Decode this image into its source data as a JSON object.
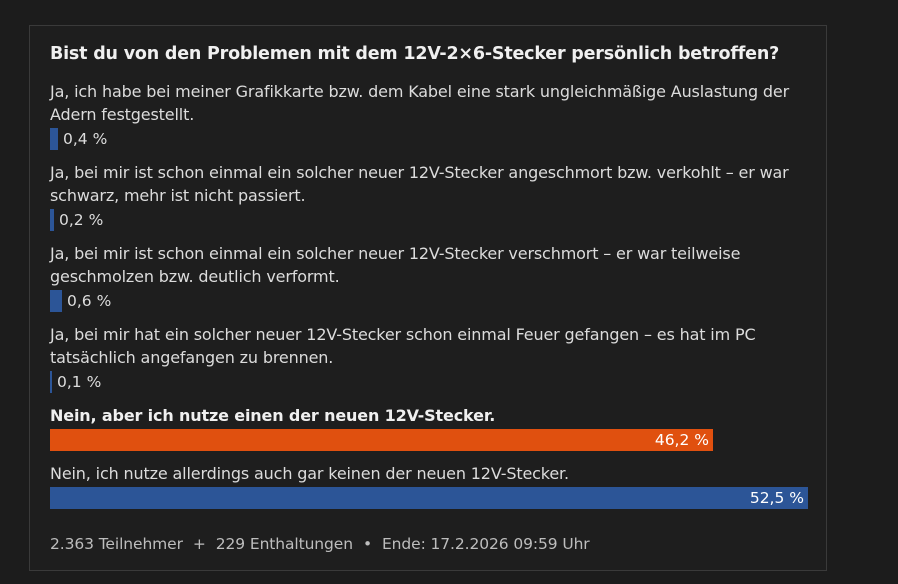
{
  "poll": {
    "question": "Bist du von den Problemen mit dem 12V-2×6-Stecker persönlich betroffen?",
    "options": [
      {
        "label": "Ja, ich habe bei meiner Grafikkarte bzw. dem Kabel eine stark ungleichmäßige Auslastung der Adern festgestellt.",
        "percent_text": "0,4 %",
        "value": 0.4,
        "selected": false
      },
      {
        "label": "Ja, bei mir ist schon einmal ein solcher neuer 12V-Stecker angeschmort bzw. verkohlt – er war schwarz, mehr ist nicht passiert.",
        "percent_text": "0,2 %",
        "value": 0.2,
        "selected": false
      },
      {
        "label": "Ja, bei mir ist schon einmal ein solcher neuer 12V-Stecker verschmort – er war teilweise geschmolzen bzw. deutlich verformt.",
        "percent_text": "0,6 %",
        "value": 0.6,
        "selected": false
      },
      {
        "label": "Ja, bei mir hat ein solcher neuer 12V-Stecker schon einmal Feuer gefangen – es hat im PC tatsächlich angefangen zu brennen.",
        "percent_text": "0,1 %",
        "value": 0.1,
        "selected": false
      },
      {
        "label": "Nein, aber ich nutze einen der neuen 12V-Stecker.",
        "percent_text": "46,2 %",
        "value": 46.2,
        "selected": true
      },
      {
        "label": "Nein, ich nutze allerdings auch gar keinen der neuen 12V-Stecker.",
        "percent_text": "52,5 %",
        "value": 52.5,
        "selected": false
      }
    ],
    "footer": {
      "participants": "2.363 Teilnehmer",
      "sep1": "+",
      "abstentions": "229 Enthaltungen",
      "sep2": "•",
      "end": "Ende: 17.2.2026 09:59 Uhr"
    }
  },
  "colors": {
    "bar_default": "#2c5597",
    "bar_selected": "#e0500f",
    "background": "#1c1c1c",
    "card_border": "#3a3a3a"
  }
}
